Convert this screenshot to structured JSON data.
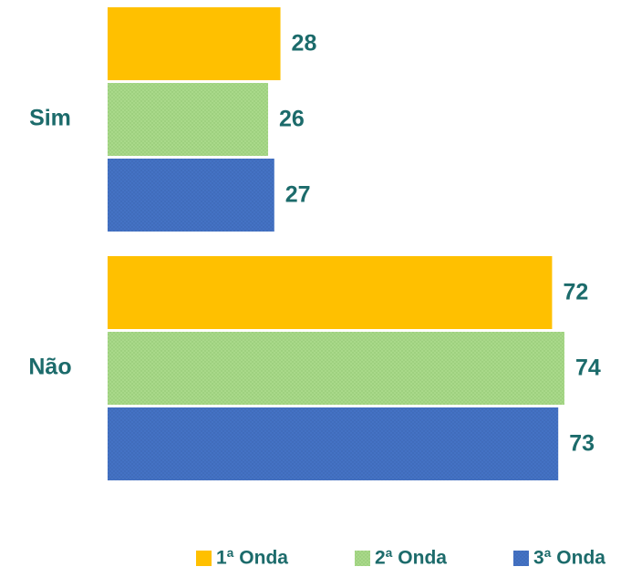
{
  "chart_data": {
    "type": "bar",
    "orientation": "horizontal",
    "categories": [
      "Sim",
      "Não"
    ],
    "series": [
      {
        "name": "1ª Onda",
        "color": "#ffc000",
        "values": [
          28,
          72
        ]
      },
      {
        "name": "2ª Onda",
        "color": "#a9d98a",
        "pattern": "dots",
        "values": [
          26,
          74
        ]
      },
      {
        "name": "3ª Onda",
        "color": "#4472c4",
        "pattern": "dots",
        "values": [
          27,
          73
        ]
      }
    ],
    "legend": "bottom"
  }
}
